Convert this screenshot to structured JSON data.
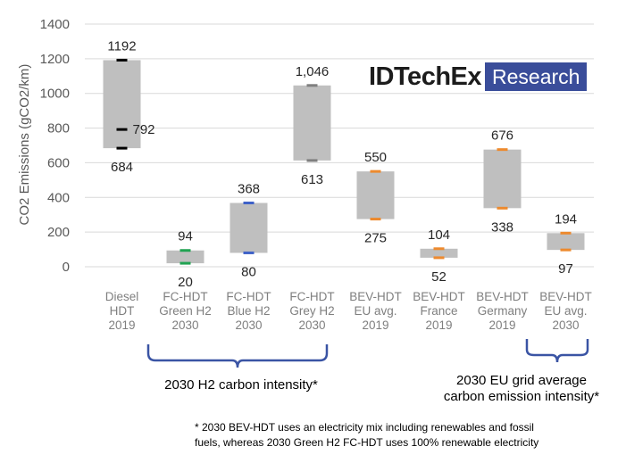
{
  "chart_data": {
    "type": "floating-bar",
    "ylabel": "CO2 Emissions (gCO2/km)",
    "ylim": [
      0,
      1400
    ],
    "yticks": [
      0,
      200,
      400,
      600,
      800,
      1000,
      1200,
      1400
    ],
    "grid": true,
    "categories": [
      [
        "Diesel",
        "HDT",
        "2019"
      ],
      [
        "FC-HDT",
        "Green H2",
        "2030"
      ],
      [
        "FC-HDT",
        "Blue H2",
        "2030"
      ],
      [
        "FC-HDT",
        "Grey H2",
        "2030"
      ],
      [
        "BEV-HDT",
        "EU avg.",
        "2019"
      ],
      [
        "BEV-HDT",
        "France",
        "2019"
      ],
      [
        "BEV-HDT",
        "Germany",
        "2019"
      ],
      [
        "BEV-HDT",
        "EU avg.",
        "2030"
      ]
    ],
    "ranges": [
      {
        "low": 684,
        "high": 1192,
        "low_label": "684",
        "high_label": "1192",
        "marker_color": "#000000",
        "mid": 792,
        "mid_label": "792"
      },
      {
        "low": 20,
        "high": 94,
        "low_label": "20",
        "high_label": "94",
        "marker_color": "#21a352"
      },
      {
        "low": 80,
        "high": 368,
        "low_label": "80",
        "high_label": "368",
        "marker_color": "#3f62c8"
      },
      {
        "low": 613,
        "high": 1046,
        "low_label": "613",
        "high_label": "1,046",
        "marker_color": "#7f7f7f"
      },
      {
        "low": 275,
        "high": 550,
        "low_label": "275",
        "high_label": "550",
        "marker_color": "#ed8a2e"
      },
      {
        "low": 52,
        "high": 104,
        "low_label": "52",
        "high_label": "104",
        "marker_color": "#ed8a2e"
      },
      {
        "low": 338,
        "high": 676,
        "low_label": "338",
        "high_label": "676",
        "marker_color": "#ed8a2e"
      },
      {
        "low": 97,
        "high": 194,
        "low_label": "97",
        "high_label": "194",
        "marker_color": "#ed8a2e"
      }
    ],
    "bar_color": "#bfbfbf",
    "bracket_color": "#3a54a4"
  },
  "annotations": {
    "h2_bracket": "2030 H2 carbon intensity*",
    "eu_bracket_line1": "2030 EU grid average",
    "eu_bracket_line2": "carbon emission intensity*",
    "footnote_line1": "* 2030 BEV-HDT uses an electricity mix including renewables and fossil",
    "footnote_line2": "fuels, whereas 2030 Green H2 FC-HDT uses 100% renewable electricity"
  },
  "logo": {
    "main": "IDTechEx",
    "box": "Research"
  }
}
